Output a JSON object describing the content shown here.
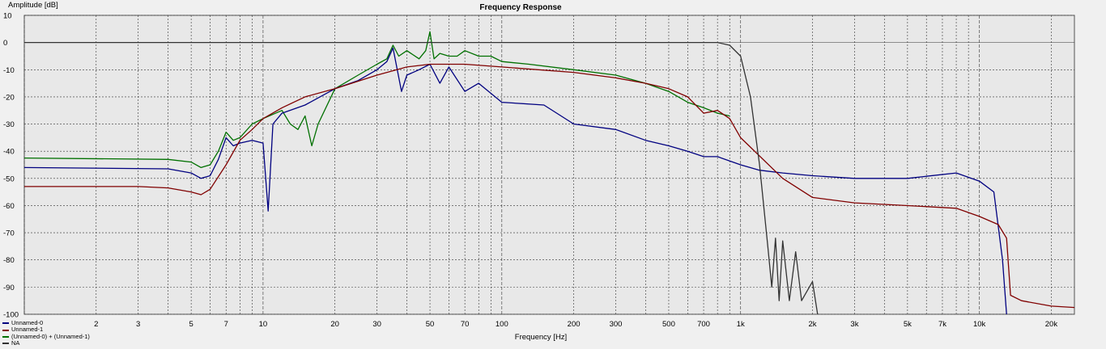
{
  "chart_data": {
    "type": "line",
    "title": "Frequency Response",
    "xlabel": "Frequency [Hz]",
    "ylabel": "Amplitude [dB]",
    "xscale": "log",
    "xlim": [
      1,
      25000
    ],
    "ylim": [
      -100,
      10
    ],
    "grid": true,
    "legend_position": "bottom-left",
    "y_ticks": [
      "10",
      "0",
      "-10",
      "-20",
      "-30",
      "-40",
      "-50",
      "-60",
      "-70",
      "-80",
      "-90",
      "-100"
    ],
    "x_tick_labels": [
      {
        "value": 2,
        "label": "2"
      },
      {
        "value": 3,
        "label": "3"
      },
      {
        "value": 5,
        "label": "5"
      },
      {
        "value": 7,
        "label": "7"
      },
      {
        "value": 10,
        "label": "10"
      },
      {
        "value": 20,
        "label": "20"
      },
      {
        "value": 30,
        "label": "30"
      },
      {
        "value": 50,
        "label": "50"
      },
      {
        "value": 70,
        "label": "70"
      },
      {
        "value": 100,
        "label": "100"
      },
      {
        "value": 200,
        "label": "200"
      },
      {
        "value": 300,
        "label": "300"
      },
      {
        "value": 500,
        "label": "500"
      },
      {
        "value": 700,
        "label": "700"
      },
      {
        "value": 1000,
        "label": "1k"
      },
      {
        "value": 2000,
        "label": "2k"
      },
      {
        "value": 3000,
        "label": "3k"
      },
      {
        "value": 5000,
        "label": "5k"
      },
      {
        "value": 7000,
        "label": "7k"
      },
      {
        "value": 10000,
        "label": "10k"
      },
      {
        "value": 20000,
        "label": "20k"
      }
    ],
    "series": [
      {
        "name": "(Unnamed-0) + (Unnamed-1)",
        "color": "#007000",
        "x": [
          1,
          4,
          5,
          5.5,
          6,
          6.5,
          7,
          7.5,
          8,
          9,
          10,
          12,
          13,
          14,
          15,
          16,
          17,
          20,
          25,
          30,
          33,
          35,
          37,
          40,
          45,
          48,
          50,
          52,
          55,
          60,
          65,
          70,
          80,
          90,
          100,
          130,
          200,
          300,
          400,
          500,
          600,
          700,
          800,
          900
        ],
        "y": [
          -42.5,
          -43,
          -44,
          -46,
          -45,
          -40,
          -33,
          -36,
          -35,
          -30,
          -28,
          -25,
          -30,
          -32,
          -27,
          -38,
          -30,
          -17,
          -12,
          -8,
          -6,
          -1,
          -5,
          -3,
          -6,
          -3,
          4,
          -6,
          -4,
          -5,
          -5,
          -3,
          -5,
          -5,
          -7,
          -8,
          -10,
          -12,
          -15,
          -18,
          -22,
          -24,
          -26,
          -27
        ]
      },
      {
        "name": "Unnamed-0",
        "color": "#000080",
        "x": [
          1,
          4,
          5,
          5.5,
          6,
          6.5,
          7,
          7.5,
          8,
          9,
          10,
          10.5,
          11,
          12,
          15,
          20,
          25,
          30,
          33,
          35,
          38,
          40,
          45,
          50,
          55,
          60,
          70,
          80,
          100,
          150,
          200,
          300,
          400,
          500,
          600,
          700,
          800,
          1000,
          1200,
          1500,
          2000,
          3000,
          5000,
          8000,
          10000,
          11500,
          12500,
          13000
        ],
        "y": [
          -46,
          -46.5,
          -48,
          -50,
          -49,
          -43,
          -35,
          -38,
          -37,
          -36,
          -37,
          -62,
          -30,
          -26,
          -23,
          -17,
          -14,
          -10,
          -7,
          -2,
          -18,
          -12,
          -10,
          -8,
          -15,
          -9,
          -18,
          -15,
          -22,
          -23,
          -30,
          -32,
          -36,
          -38,
          -40,
          -42,
          -42,
          -45,
          -47,
          -48,
          -49,
          -50,
          -50,
          -48,
          -51,
          -55,
          -80,
          -100
        ]
      },
      {
        "name": "Unnamed-1",
        "color": "#800000",
        "x": [
          1,
          3,
          4,
          5,
          5.5,
          6,
          7,
          8,
          9,
          10,
          12,
          15,
          20,
          30,
          40,
          50,
          70,
          100,
          200,
          300,
          400,
          500,
          600,
          700,
          800,
          900,
          1000,
          1500,
          2000,
          3000,
          5000,
          8000,
          10000,
          12000,
          13000,
          13500,
          15000,
          20000,
          25000
        ],
        "y": [
          -53,
          -53,
          -53.5,
          -55,
          -56,
          -54,
          -45,
          -36,
          -32,
          -28,
          -24,
          -20,
          -17,
          -12,
          -9,
          -8,
          -8,
          -9,
          -11,
          -13,
          -15,
          -17,
          -20,
          -26,
          -25,
          -28,
          -35,
          -50,
          -57,
          -59,
          -60,
          -61,
          -64,
          -67,
          -72,
          -93,
          -95,
          -97,
          -97.5
        ]
      },
      {
        "name": "NA",
        "color": "#333333",
        "x": [
          1,
          800,
          900,
          1000,
          1100,
          1200,
          1300,
          1350,
          1400,
          1450,
          1500,
          1600,
          1700,
          1800,
          2000,
          2100
        ],
        "y": [
          0,
          0,
          -1,
          -5,
          -20,
          -45,
          -75,
          -90,
          -72,
          -95,
          -73,
          -95,
          -77,
          -95,
          -88,
          -100
        ]
      }
    ]
  }
}
